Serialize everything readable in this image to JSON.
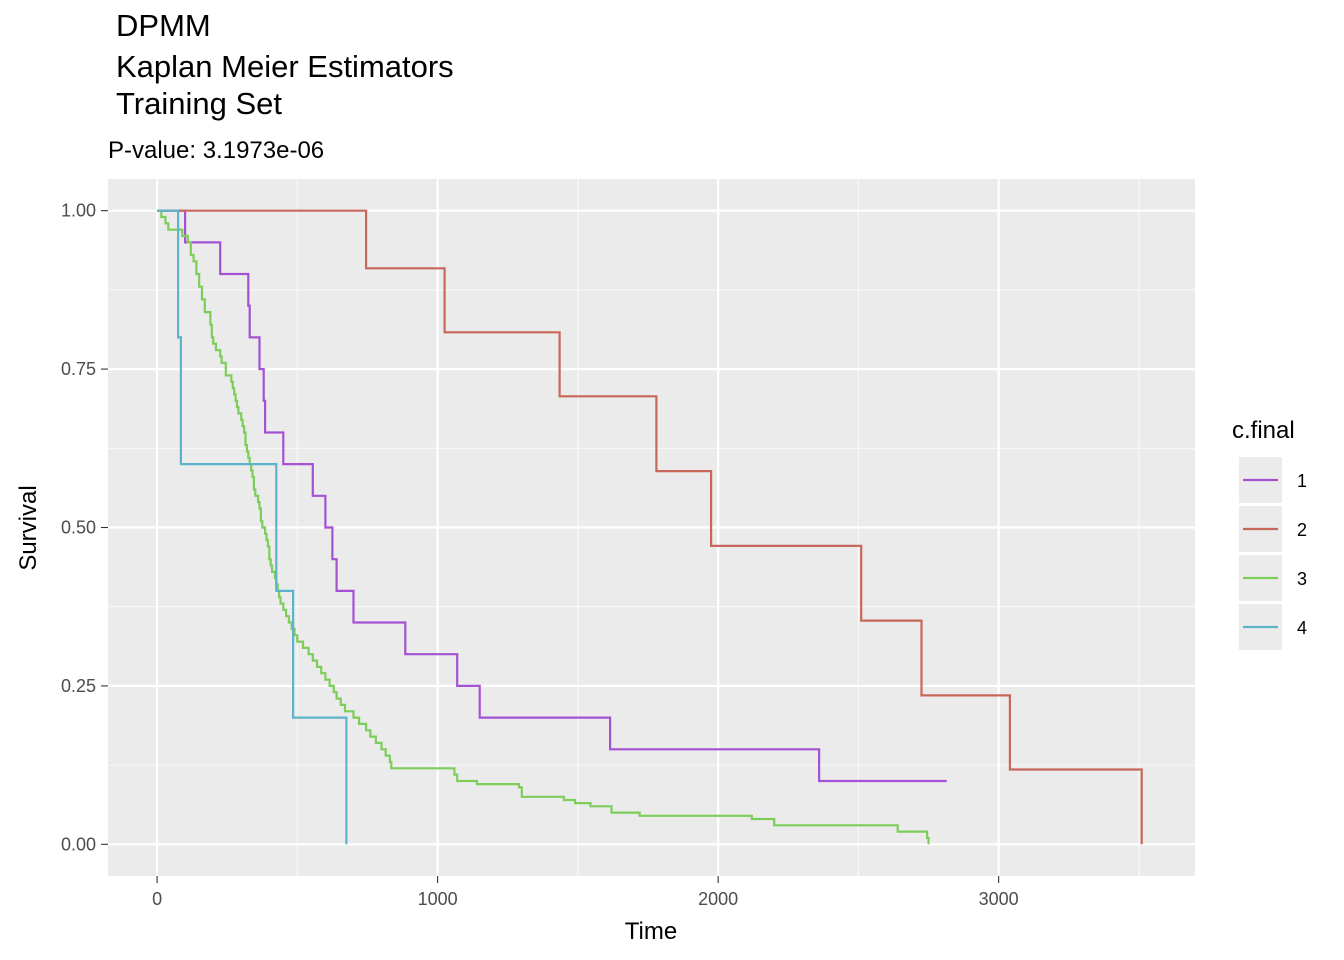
{
  "chart_data": {
    "type": "line",
    "title_lines": [
      "DPMM",
      "Kaplan Meier Estimators",
      "Training Set"
    ],
    "subtitle": "P-value: 3.1973e-06",
    "xlabel": "Time",
    "ylabel": "Survival",
    "xlim": [
      -175,
      3700
    ],
    "ylim": [
      -0.05,
      1.05
    ],
    "x_ticks": [
      0,
      1000,
      2000,
      3000
    ],
    "x_tick_labels": [
      "0",
      "1000",
      "2000",
      "3000"
    ],
    "y_ticks": [
      0,
      0.25,
      0.5,
      0.75,
      1.0
    ],
    "y_tick_labels": [
      "0.00",
      "0.25",
      "0.50",
      "0.75",
      "1.00"
    ],
    "grid": true,
    "legend_title": "c.final",
    "legend_position": "right",
    "series": [
      {
        "name": "1",
        "color": "#a352d4",
        "steps": [
          [
            0,
            1.0
          ],
          [
            100,
            0.95
          ],
          [
            225,
            0.9
          ],
          [
            325,
            0.85
          ],
          [
            330,
            0.8
          ],
          [
            365,
            0.75
          ],
          [
            380,
            0.7
          ],
          [
            385,
            0.65
          ],
          [
            450,
            0.6
          ],
          [
            555,
            0.55
          ],
          [
            600,
            0.5
          ],
          [
            625,
            0.45
          ],
          [
            640,
            0.4
          ],
          [
            700,
            0.35
          ],
          [
            885,
            0.3
          ],
          [
            1070,
            0.25
          ],
          [
            1150,
            0.2
          ],
          [
            1615,
            0.15
          ],
          [
            2360,
            0.1
          ],
          [
            2815,
            0.1
          ]
        ]
      },
      {
        "name": "2",
        "color": "#c8675a",
        "steps": [
          [
            0,
            1.0
          ],
          [
            745,
            0.909
          ],
          [
            1025,
            0.808
          ],
          [
            1435,
            0.707
          ],
          [
            1780,
            0.589
          ],
          [
            1975,
            0.471
          ],
          [
            2510,
            0.353
          ],
          [
            2725,
            0.235
          ],
          [
            3040,
            0.118
          ],
          [
            3510,
            0.0
          ]
        ]
      },
      {
        "name": "3",
        "color": "#7dcd5b",
        "steps": [
          [
            0,
            1.0
          ],
          [
            15,
            0.99
          ],
          [
            30,
            0.98
          ],
          [
            40,
            0.97
          ],
          [
            90,
            0.96
          ],
          [
            110,
            0.95
          ],
          [
            120,
            0.93
          ],
          [
            130,
            0.92
          ],
          [
            140,
            0.9
          ],
          [
            150,
            0.88
          ],
          [
            160,
            0.86
          ],
          [
            170,
            0.84
          ],
          [
            190,
            0.82
          ],
          [
            195,
            0.8
          ],
          [
            200,
            0.79
          ],
          [
            210,
            0.78
          ],
          [
            225,
            0.77
          ],
          [
            230,
            0.76
          ],
          [
            245,
            0.74
          ],
          [
            265,
            0.73
          ],
          [
            270,
            0.72
          ],
          [
            275,
            0.71
          ],
          [
            280,
            0.7
          ],
          [
            285,
            0.69
          ],
          [
            290,
            0.68
          ],
          [
            300,
            0.67
          ],
          [
            305,
            0.66
          ],
          [
            310,
            0.65
          ],
          [
            315,
            0.63
          ],
          [
            320,
            0.62
          ],
          [
            325,
            0.61
          ],
          [
            330,
            0.6
          ],
          [
            335,
            0.59
          ],
          [
            340,
            0.58
          ],
          [
            345,
            0.56
          ],
          [
            350,
            0.55
          ],
          [
            360,
            0.54
          ],
          [
            365,
            0.53
          ],
          [
            370,
            0.51
          ],
          [
            375,
            0.5
          ],
          [
            385,
            0.49
          ],
          [
            390,
            0.48
          ],
          [
            395,
            0.47
          ],
          [
            400,
            0.45
          ],
          [
            405,
            0.44
          ],
          [
            410,
            0.43
          ],
          [
            420,
            0.42
          ],
          [
            425,
            0.41
          ],
          [
            430,
            0.4
          ],
          [
            435,
            0.39
          ],
          [
            440,
            0.38
          ],
          [
            450,
            0.37
          ],
          [
            460,
            0.36
          ],
          [
            470,
            0.35
          ],
          [
            480,
            0.34
          ],
          [
            490,
            0.33
          ],
          [
            500,
            0.32
          ],
          [
            520,
            0.31
          ],
          [
            540,
            0.3
          ],
          [
            555,
            0.29
          ],
          [
            570,
            0.28
          ],
          [
            585,
            0.27
          ],
          [
            600,
            0.26
          ],
          [
            615,
            0.25
          ],
          [
            630,
            0.24
          ],
          [
            640,
            0.23
          ],
          [
            655,
            0.22
          ],
          [
            670,
            0.21
          ],
          [
            700,
            0.2
          ],
          [
            720,
            0.19
          ],
          [
            745,
            0.18
          ],
          [
            760,
            0.17
          ],
          [
            780,
            0.16
          ],
          [
            800,
            0.15
          ],
          [
            815,
            0.14
          ],
          [
            830,
            0.13
          ],
          [
            835,
            0.12
          ],
          [
            1060,
            0.11
          ],
          [
            1070,
            0.1
          ],
          [
            1140,
            0.095
          ],
          [
            1290,
            0.09
          ],
          [
            1300,
            0.08
          ],
          [
            1300,
            0.075
          ],
          [
            1450,
            0.07
          ],
          [
            1490,
            0.065
          ],
          [
            1545,
            0.06
          ],
          [
            1620,
            0.05
          ],
          [
            1720,
            0.045
          ],
          [
            2120,
            0.04
          ],
          [
            2200,
            0.03
          ],
          [
            2640,
            0.02
          ],
          [
            2745,
            0.01
          ],
          [
            2750,
            0.0
          ]
        ]
      },
      {
        "name": "4",
        "color": "#5bb4c9",
        "steps": [
          [
            0,
            1.0
          ],
          [
            75,
            0.8
          ],
          [
            85,
            0.6
          ],
          [
            425,
            0.4
          ],
          [
            485,
            0.2
          ],
          [
            675,
            0.0
          ]
        ]
      }
    ]
  }
}
